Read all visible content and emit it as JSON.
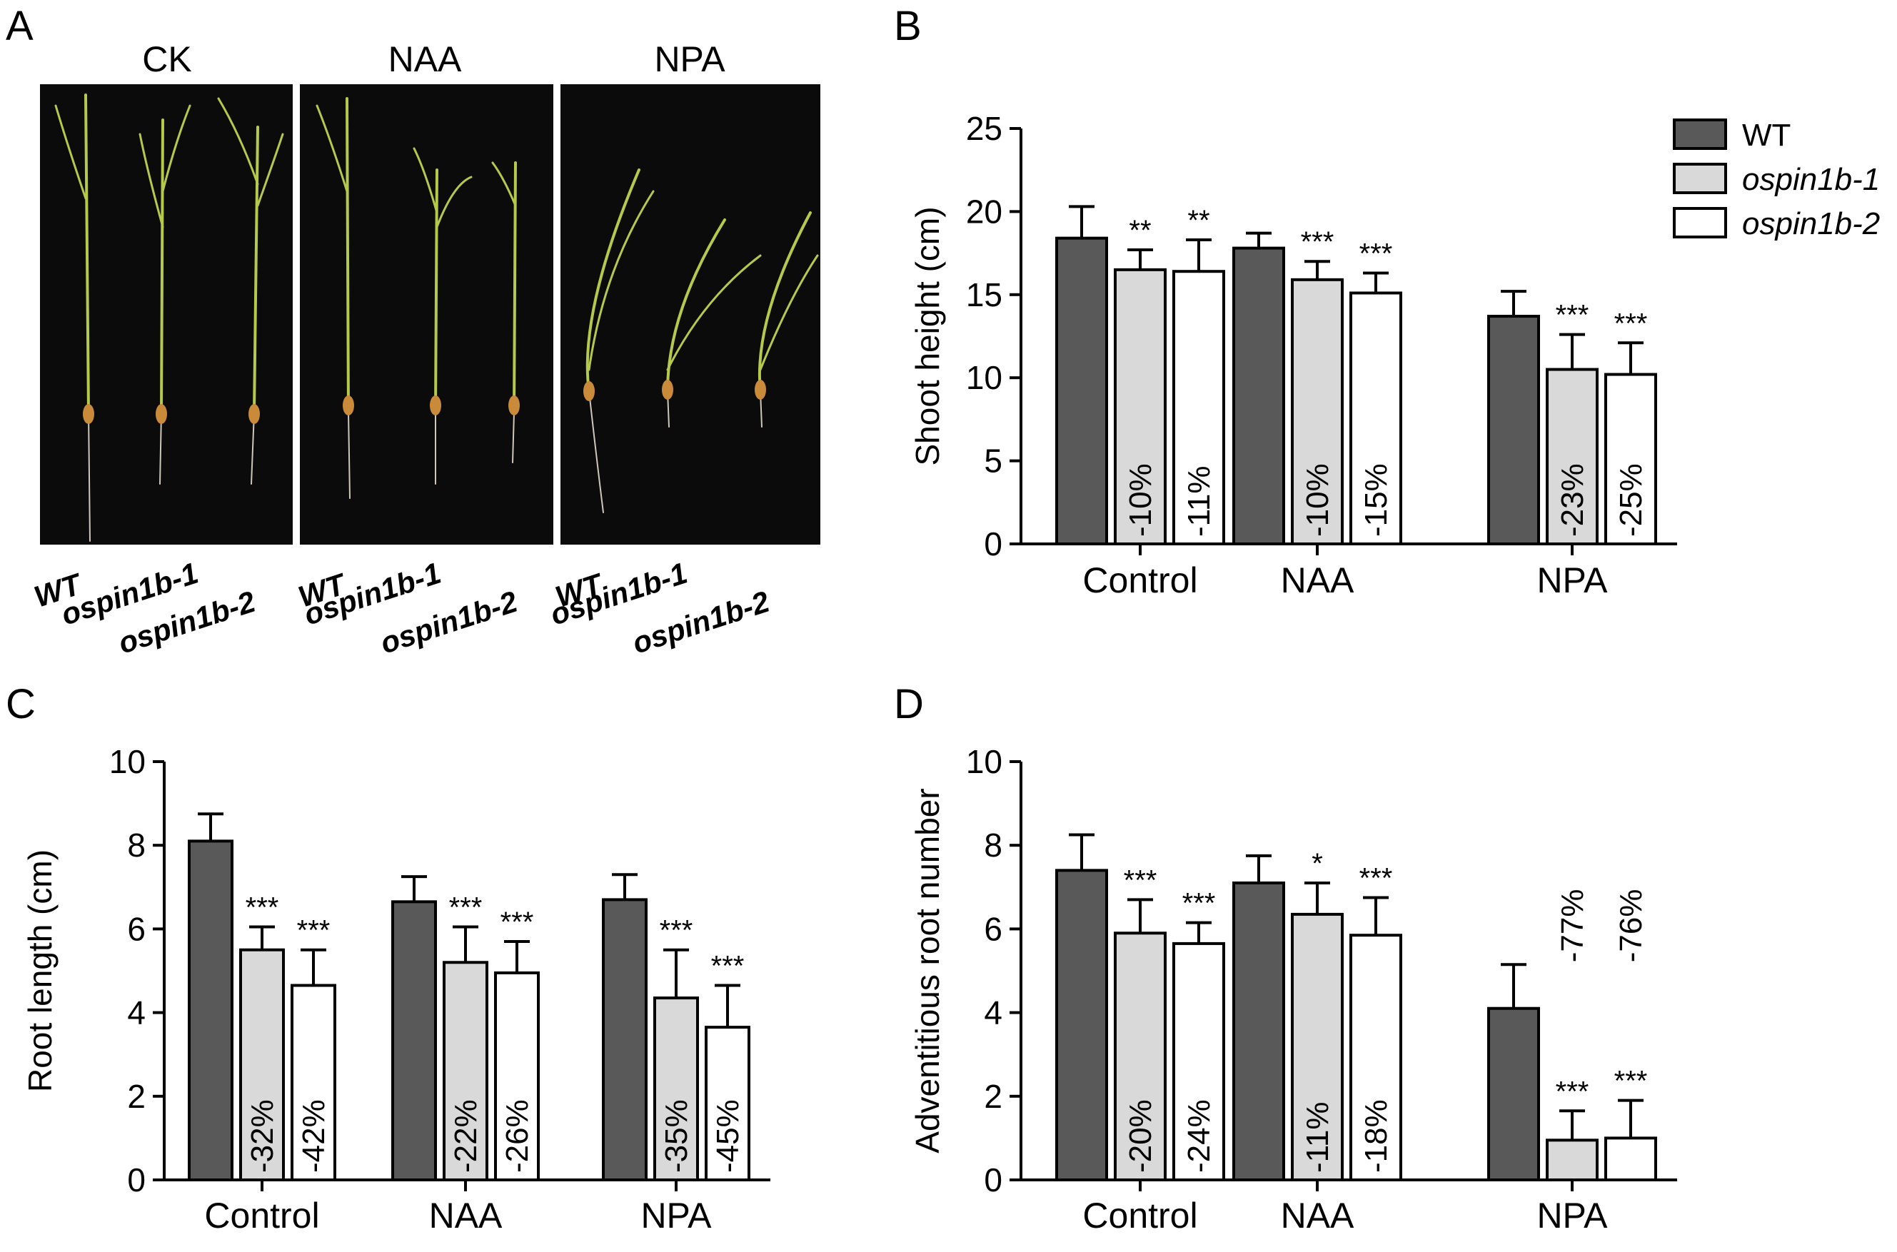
{
  "panel_labels": {
    "A": "A",
    "B": "B",
    "C": "C",
    "D": "D"
  },
  "photos": {
    "conditions": [
      "CK",
      "NAA",
      "NPA"
    ],
    "plant_labels": [
      "WT",
      "ospin1b-1",
      "ospin1b-2"
    ]
  },
  "legend": [
    "WT",
    "ospin1b-1",
    "ospin1b-2"
  ],
  "colors": {
    "wt": "#595959",
    "ospin1b_1": "#d9d9d9",
    "ospin1b_2": "#ffffff",
    "photo_bg": "#0b0b0b",
    "leaf": "#b5c94a"
  },
  "chart_data": [
    {
      "panel": "B",
      "type": "bar",
      "ylabel": "Shoot height (cm)",
      "ylim": [
        0,
        25
      ],
      "yticks": [
        0,
        5,
        10,
        15,
        20,
        25
      ],
      "categories": [
        "Control",
        "NAA",
        "NPA"
      ],
      "series": [
        {
          "name": "WT",
          "values": [
            18.4,
            17.8,
            13.7
          ],
          "errors": [
            1.9,
            0.9,
            1.5
          ]
        },
        {
          "name": "ospin1b-1",
          "values": [
            16.5,
            15.9,
            10.5
          ],
          "errors": [
            1.2,
            1.1,
            2.1
          ]
        },
        {
          "name": "ospin1b-2",
          "values": [
            16.4,
            15.1,
            10.2
          ],
          "errors": [
            1.9,
            1.2,
            1.9
          ]
        }
      ],
      "stars": [
        [
          "",
          "**",
          "**"
        ],
        [
          "",
          "***",
          "***"
        ],
        [
          "",
          "***",
          "***"
        ]
      ],
      "percents": [
        [
          "",
          "-10%",
          "-11%"
        ],
        [
          "",
          "-10%",
          "-15%"
        ],
        [
          "",
          "-23%",
          "-25%"
        ]
      ],
      "percent_position": "inside"
    },
    {
      "panel": "C",
      "type": "bar",
      "ylabel": "Root length (cm)",
      "ylim": [
        0,
        10
      ],
      "yticks": [
        0,
        2,
        4,
        6,
        8,
        10
      ],
      "categories": [
        "Control",
        "NAA",
        "NPA"
      ],
      "series": [
        {
          "name": "WT",
          "values": [
            8.1,
            6.65,
            6.7
          ],
          "errors": [
            0.65,
            0.6,
            0.6
          ]
        },
        {
          "name": "ospin1b-1",
          "values": [
            5.5,
            5.2,
            4.35
          ],
          "errors": [
            0.55,
            0.85,
            1.15
          ]
        },
        {
          "name": "ospin1b-2",
          "values": [
            4.65,
            4.95,
            3.65
          ],
          "errors": [
            0.85,
            0.75,
            1.0
          ]
        }
      ],
      "stars": [
        [
          "",
          "***",
          "***"
        ],
        [
          "",
          "***",
          "***"
        ],
        [
          "",
          "***",
          "***"
        ]
      ],
      "percents": [
        [
          "",
          "-32%",
          "-42%"
        ],
        [
          "",
          "-22%",
          "-26%"
        ],
        [
          "",
          "-35%",
          "-45%"
        ]
      ],
      "percent_position": "inside"
    },
    {
      "panel": "D",
      "type": "bar",
      "ylabel": "Adventitious root number",
      "ylim": [
        0,
        10
      ],
      "yticks": [
        0,
        2,
        4,
        6,
        8,
        10
      ],
      "categories": [
        "Control",
        "NAA",
        "NPA"
      ],
      "series": [
        {
          "name": "WT",
          "values": [
            7.4,
            7.1,
            4.1
          ],
          "errors": [
            0.85,
            0.65,
            1.05
          ]
        },
        {
          "name": "ospin1b-1",
          "values": [
            5.9,
            6.35,
            0.95
          ],
          "errors": [
            0.8,
            0.75,
            0.7
          ]
        },
        {
          "name": "ospin1b-2",
          "values": [
            5.65,
            5.85,
            1.0
          ],
          "errors": [
            0.5,
            0.9,
            0.9
          ]
        }
      ],
      "stars": [
        [
          "",
          "***",
          "***"
        ],
        [
          "",
          "*",
          "***"
        ],
        [
          "",
          "***",
          "***"
        ]
      ],
      "percents": [
        [
          "",
          "-20%",
          "-24%"
        ],
        [
          "",
          "-11%",
          "-18%"
        ],
        [
          "",
          "-77%",
          "-76%"
        ]
      ],
      "percent_position": [
        "inside",
        "inside",
        "above"
      ]
    }
  ]
}
